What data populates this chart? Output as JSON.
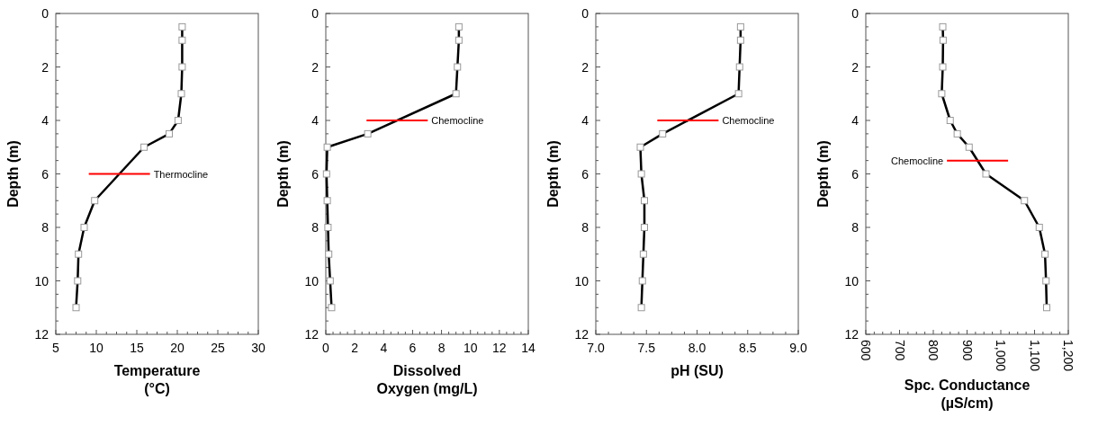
{
  "chart_data": [
    {
      "type": "line",
      "xlabel": "Temperature\n(°C)",
      "ylabel": "Depth (m)",
      "xlim": [
        5,
        30
      ],
      "xticks": [
        5,
        10,
        15,
        20,
        25,
        30
      ],
      "ylim": [
        12,
        0
      ],
      "yticks": [
        0,
        2,
        4,
        6,
        8,
        10,
        12
      ],
      "marker": "square",
      "line_style": "solid",
      "grid": false,
      "series": [
        {
          "color": "#000000",
          "x": [
            20.6,
            20.6,
            20.6,
            20.5,
            20.1,
            19.0,
            15.9,
            9.8,
            8.5,
            7.8,
            7.7,
            7.5
          ],
          "values": [
            0.5,
            1,
            2,
            3,
            4,
            4.5,
            5,
            7,
            8,
            9,
            10,
            11
          ]
        }
      ],
      "ref_lines": [
        {
          "axis": "y",
          "value": 6,
          "label": "Thermocline",
          "color": "#ff0000"
        }
      ]
    },
    {
      "type": "line",
      "xlabel": "Dissolved\nOxygen (mg/L)",
      "ylabel": "Depth (m)",
      "xlim": [
        0,
        14
      ],
      "xticks": [
        0,
        2,
        4,
        6,
        8,
        10,
        12,
        14
      ],
      "ylim": [
        12,
        0
      ],
      "yticks": [
        0,
        2,
        4,
        6,
        8,
        10,
        12
      ],
      "marker": "square",
      "line_style": "solid",
      "grid": false,
      "series": [
        {
          "color": "#000000",
          "x": [
            9.2,
            9.2,
            9.1,
            9.0,
            2.9,
            0.1,
            0.05,
            0.1,
            0.15,
            0.2,
            0.3,
            0.4
          ],
          "values": [
            0.5,
            1,
            2,
            3,
            4.5,
            5,
            6,
            7,
            8,
            9,
            10,
            11
          ]
        }
      ],
      "ref_lines": [
        {
          "axis": "y",
          "value": 4,
          "label": "Chemocline",
          "color": "#ff0000"
        }
      ]
    },
    {
      "type": "line",
      "xlabel": "pH (SU)",
      "ylabel": "Depth (m)",
      "xlim": [
        7,
        9
      ],
      "xticks": [
        {
          "value": 7,
          "label": "7.0"
        },
        7.5,
        {
          "value": 8,
          "label": "8.0"
        },
        8.5,
        {
          "value": 9,
          "label": "9.0"
        }
      ],
      "ylim": [
        12,
        0
      ],
      "yticks": [
        0,
        2,
        4,
        6,
        8,
        10,
        12
      ],
      "marker": "square",
      "line_style": "solid",
      "grid": false,
      "series": [
        {
          "color": "#000000",
          "x": [
            8.43,
            8.43,
            8.42,
            8.41,
            7.66,
            7.44,
            7.45,
            7.48,
            7.48,
            7.47,
            7.46,
            7.45
          ],
          "values": [
            0.5,
            1,
            2,
            3,
            4.5,
            5,
            6,
            7,
            8,
            9,
            10,
            11
          ]
        }
      ],
      "ref_lines": [
        {
          "axis": "y",
          "value": 4,
          "label": "Chemocline",
          "color": "#ff0000"
        }
      ]
    },
    {
      "type": "line",
      "xlabel": "Spc. Conductance\n(µS/cm)",
      "ylabel": "Depth (m)",
      "xlim": [
        600,
        1200
      ],
      "xticks": [
        600,
        700,
        800,
        900,
        {
          "value": 1000,
          "label": "1,000"
        },
        {
          "value": 1100,
          "label": "1,100"
        },
        {
          "value": 1200,
          "label": "1,200"
        }
      ],
      "ylim": [
        12,
        0
      ],
      "yticks": [
        0,
        2,
        4,
        6,
        8,
        10,
        12
      ],
      "marker": "square",
      "line_style": "solid",
      "grid": false,
      "series": [
        {
          "color": "#000000",
          "x": [
            828,
            829,
            828,
            825,
            850,
            871,
            906,
            956,
            1070,
            1114,
            1131,
            1134,
            1136
          ],
          "values": [
            0.5,
            1,
            2,
            3,
            4,
            4.5,
            5,
            6,
            7,
            8,
            9,
            10,
            11
          ]
        }
      ],
      "ref_lines": [
        {
          "axis": "y",
          "value": 5.5,
          "label": "Chemocline",
          "color": "#ff0000"
        }
      ]
    }
  ]
}
